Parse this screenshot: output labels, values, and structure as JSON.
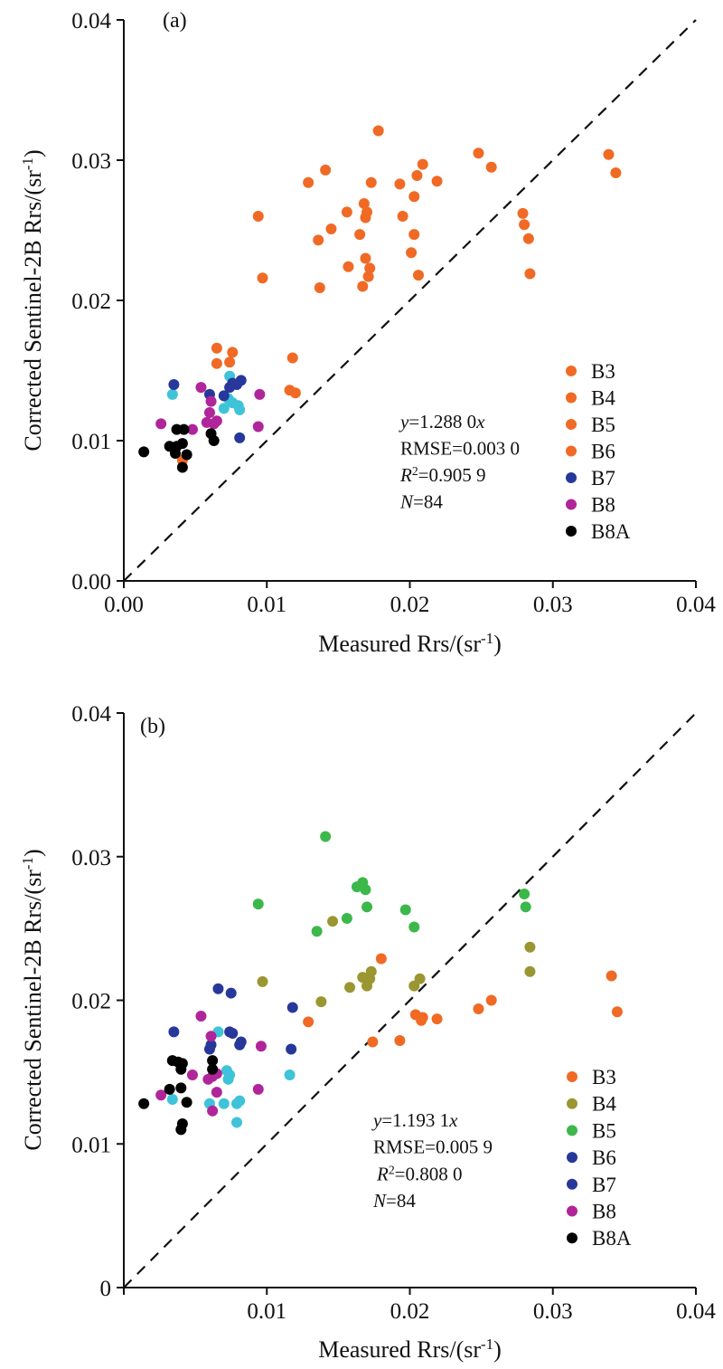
{
  "chart_data": [
    {
      "type": "scatter",
      "panel_label": "(a)",
      "xlabel": {
        "text": "Measured Rrs/(sr",
        "sup": "-1",
        "close": ")"
      },
      "ylabel": {
        "text": "Corrected Sentinel-2B Rrs/(sr",
        "sup": "-1",
        "close": ")"
      },
      "xlim": [
        0,
        0.04
      ],
      "ylim": [
        0,
        0.04
      ],
      "xticks": [
        "0.00",
        "0.01",
        "0.02",
        "0.03",
        "0.04"
      ],
      "yticks": [
        "0.00",
        "0.01",
        "0.02",
        "0.03",
        "0.04"
      ],
      "reference_line": "1:1 dashed",
      "legend": {
        "placement": "right",
        "entries": [
          {
            "name": "B3",
            "color": "#f06a25"
          },
          {
            "name": "B4",
            "color": "#f06a25"
          },
          {
            "name": "B5",
            "color": "#f06a25"
          },
          {
            "name": "B6",
            "color": "#f06a25"
          },
          {
            "name": "B7",
            "color": "#27389a"
          },
          {
            "name": "B8",
            "color": "#b0259a"
          },
          {
            "name": "B8A",
            "color": "#000000"
          }
        ]
      },
      "annotation": {
        "eq_y": "y",
        "eq_coef": "=1.288 0",
        "eq_x": "x",
        "rmse": "RMSE=0.003 0",
        "r2_var": "R",
        "r2_sup": "2",
        "r2_val": "=0.905 9",
        "n_var": "N",
        "n_val": "=84"
      },
      "series": [
        {
          "name": "B3-B6 (orange)",
          "color": "#f06a25",
          "points": [
            [
              0.0178,
              0.0321
            ],
            [
              0.0248,
              0.0305
            ],
            [
              0.0141,
              0.0293
            ],
            [
              0.0129,
              0.0284
            ],
            [
              0.0209,
              0.0297
            ],
            [
              0.0205,
              0.0289
            ],
            [
              0.0219,
              0.0285
            ],
            [
              0.0173,
              0.0284
            ],
            [
              0.0193,
              0.0283
            ],
            [
              0.0257,
              0.0295
            ],
            [
              0.0339,
              0.0304
            ],
            [
              0.0344,
              0.0291
            ],
            [
              0.0094,
              0.026
            ],
            [
              0.0203,
              0.0274
            ],
            [
              0.0168,
              0.0269
            ],
            [
              0.017,
              0.0263
            ],
            [
              0.0156,
              0.0263
            ],
            [
              0.0169,
              0.0259
            ],
            [
              0.0195,
              0.026
            ],
            [
              0.0145,
              0.0251
            ],
            [
              0.0165,
              0.0247
            ],
            [
              0.0203,
              0.0247
            ],
            [
              0.0136,
              0.0243
            ],
            [
              0.0201,
              0.0234
            ],
            [
              0.0279,
              0.0262
            ],
            [
              0.028,
              0.0254
            ],
            [
              0.0283,
              0.0244
            ],
            [
              0.0097,
              0.0216
            ],
            [
              0.0157,
              0.0224
            ],
            [
              0.0169,
              0.023
            ],
            [
              0.0172,
              0.0223
            ],
            [
              0.0171,
              0.0217
            ],
            [
              0.0206,
              0.0218
            ],
            [
              0.0284,
              0.0219
            ],
            [
              0.0137,
              0.0209
            ],
            [
              0.0167,
              0.021
            ],
            [
              0.0065,
              0.0166
            ],
            [
              0.0076,
              0.0163
            ],
            [
              0.0065,
              0.0155
            ],
            [
              0.0074,
              0.0156
            ],
            [
              0.0118,
              0.0159
            ],
            [
              0.0116,
              0.0136
            ],
            [
              0.012,
              0.0134
            ],
            [
              0.0041,
              0.0086
            ]
          ]
        },
        {
          "name": "cyan",
          "color": "#3ec3d8",
          "points": [
            [
              0.0034,
              0.0133
            ],
            [
              0.0074,
              0.0146
            ],
            [
              0.007,
              0.0123
            ],
            [
              0.0076,
              0.0127
            ],
            [
              0.008,
              0.0125
            ],
            [
              0.0081,
              0.0122
            ],
            [
              0.0073,
              0.013
            ]
          ]
        },
        {
          "name": "B7",
          "color": "#27389a",
          "points": [
            [
              0.0035,
              0.014
            ],
            [
              0.006,
              0.0133
            ],
            [
              0.007,
              0.0132
            ],
            [
              0.0074,
              0.0138
            ],
            [
              0.0076,
              0.0141
            ],
            [
              0.0082,
              0.0143
            ],
            [
              0.0079,
              0.014
            ],
            [
              0.0081,
              0.0102
            ]
          ]
        },
        {
          "name": "B8",
          "color": "#b0259a",
          "points": [
            [
              0.0026,
              0.0112
            ],
            [
              0.0054,
              0.0138
            ],
            [
              0.0061,
              0.0128
            ],
            [
              0.006,
              0.012
            ],
            [
              0.0058,
              0.0113
            ],
            [
              0.0063,
              0.0112
            ],
            [
              0.0065,
              0.0114
            ],
            [
              0.0048,
              0.0108
            ],
            [
              0.0095,
              0.0133
            ],
            [
              0.0094,
              0.011
            ]
          ]
        },
        {
          "name": "B8A",
          "color": "#000000",
          "points": [
            [
              0.0014,
              0.0092
            ],
            [
              0.0037,
              0.0108
            ],
            [
              0.0042,
              0.0108
            ],
            [
              0.0032,
              0.0096
            ],
            [
              0.0037,
              0.0096
            ],
            [
              0.0041,
              0.0098
            ],
            [
              0.0044,
              0.009
            ],
            [
              0.0036,
              0.0091
            ],
            [
              0.0061,
              0.0105
            ],
            [
              0.0063,
              0.01
            ],
            [
              0.0041,
              0.0081
            ]
          ]
        }
      ]
    },
    {
      "type": "scatter",
      "panel_label": "(b)",
      "xlabel": {
        "text": "Measured Rrs/(sr",
        "sup": "-1",
        "close": ")"
      },
      "ylabel": {
        "text": "Corrected Sentinel-2B Rrs/(sr",
        "sup": "-1",
        "close": ")"
      },
      "xlim": [
        0,
        0.04
      ],
      "ylim": [
        0,
        0.04
      ],
      "xticks": [
        "",
        "0.01",
        "0.02",
        "0.03",
        "0.04"
      ],
      "yticks": [
        "0",
        "0.01",
        "0.02",
        "0.03",
        "0.04"
      ],
      "reference_line": "1:1 dashed",
      "legend": {
        "placement": "right",
        "entries": [
          {
            "name": "B3",
            "color": "#f06a25"
          },
          {
            "name": "B4",
            "color": "#9a9632"
          },
          {
            "name": "B5",
            "color": "#3cb84a"
          },
          {
            "name": "B6",
            "color": "#27389a"
          },
          {
            "name": "B7",
            "color": "#27389a"
          },
          {
            "name": "B8",
            "color": "#b0259a"
          },
          {
            "name": "B8A",
            "color": "#000000"
          }
        ]
      },
      "annotation": {
        "eq_y": "y",
        "eq_coef": "=1.193 1",
        "eq_x": "x",
        "rmse": "RMSE=0.005 9",
        "r2_var": "R",
        "r2_sup": "2",
        "r2_val": "=0.808 0",
        "n_var": "N",
        "n_val": "=84"
      },
      "series": [
        {
          "name": "B3",
          "color": "#f06a25",
          "points": [
            [
              0.0204,
              0.019
            ],
            [
              0.0208,
              0.0186
            ],
            [
              0.0209,
              0.0188
            ],
            [
              0.0219,
              0.0187
            ],
            [
              0.0248,
              0.0194
            ],
            [
              0.0257,
              0.02
            ],
            [
              0.0341,
              0.0217
            ],
            [
              0.0345,
              0.0192
            ],
            [
              0.018,
              0.0229
            ],
            [
              0.0129,
              0.0185
            ],
            [
              0.0174,
              0.0171
            ],
            [
              0.0193,
              0.0172
            ]
          ]
        },
        {
          "name": "B4",
          "color": "#9a9632",
          "points": [
            [
              0.0097,
              0.0213
            ],
            [
              0.0138,
              0.0199
            ],
            [
              0.0146,
              0.0255
            ],
            [
              0.0158,
              0.0209
            ],
            [
              0.0167,
              0.0216
            ],
            [
              0.017,
              0.021
            ],
            [
              0.0172,
              0.0215
            ],
            [
              0.0173,
              0.022
            ],
            [
              0.0203,
              0.021
            ],
            [
              0.0207,
              0.0215
            ],
            [
              0.0284,
              0.0237
            ],
            [
              0.0284,
              0.022
            ]
          ]
        },
        {
          "name": "B5",
          "color": "#3cb84a",
          "points": [
            [
              0.0141,
              0.0314
            ],
            [
              0.0094,
              0.0267
            ],
            [
              0.0135,
              0.0248
            ],
            [
              0.0156,
              0.0257
            ],
            [
              0.0163,
              0.0279
            ],
            [
              0.0167,
              0.0282
            ],
            [
              0.0169,
              0.0277
            ],
            [
              0.017,
              0.0265
            ],
            [
              0.0197,
              0.0263
            ],
            [
              0.0203,
              0.0251
            ],
            [
              0.028,
              0.0274
            ],
            [
              0.0281,
              0.0265
            ]
          ]
        },
        {
          "name": "B6/B7",
          "color": "#27389a",
          "points": [
            [
              0.0035,
              0.0178
            ],
            [
              0.0066,
              0.0208
            ],
            [
              0.0075,
              0.0205
            ],
            [
              0.006,
              0.0166
            ],
            [
              0.0074,
              0.0178
            ],
            [
              0.0076,
              0.0177
            ],
            [
              0.0082,
              0.0171
            ],
            [
              0.0081,
              0.0169
            ],
            [
              0.0118,
              0.0195
            ],
            [
              0.0117,
              0.0166
            ],
            [
              0.0061,
              0.0169
            ]
          ]
        },
        {
          "name": "cyan",
          "color": "#3ec3d8",
          "points": [
            [
              0.0066,
              0.0178
            ],
            [
              0.0072,
              0.0151
            ],
            [
              0.0074,
              0.0148
            ],
            [
              0.0073,
              0.0145
            ],
            [
              0.006,
              0.0128
            ],
            [
              0.007,
              0.0128
            ],
            [
              0.0079,
              0.0128
            ],
            [
              0.0081,
              0.013
            ],
            [
              0.0079,
              0.0115
            ],
            [
              0.0034,
              0.0131
            ],
            [
              0.0116,
              0.0148
            ]
          ]
        },
        {
          "name": "B8",
          "color": "#b0259a",
          "points": [
            [
              0.0054,
              0.0189
            ],
            [
              0.0061,
              0.0175
            ],
            [
              0.0096,
              0.0168
            ],
            [
              0.0048,
              0.0148
            ],
            [
              0.0059,
              0.0145
            ],
            [
              0.0062,
              0.0147
            ],
            [
              0.0065,
              0.0149
            ],
            [
              0.0026,
              0.0134
            ],
            [
              0.0062,
              0.0123
            ],
            [
              0.0065,
              0.0136
            ],
            [
              0.0094,
              0.0138
            ]
          ]
        },
        {
          "name": "B8A",
          "color": "#000000",
          "points": [
            [
              0.0014,
              0.0128
            ],
            [
              0.0034,
              0.0158
            ],
            [
              0.0038,
              0.0157
            ],
            [
              0.004,
              0.0152
            ],
            [
              0.0041,
              0.0156
            ],
            [
              0.0032,
              0.0138
            ],
            [
              0.004,
              0.0139
            ],
            [
              0.0044,
              0.0129
            ],
            [
              0.0041,
              0.0114
            ],
            [
              0.004,
              0.011
            ],
            [
              0.0062,
              0.0158
            ],
            [
              0.0062,
              0.0152
            ]
          ]
        }
      ]
    }
  ]
}
